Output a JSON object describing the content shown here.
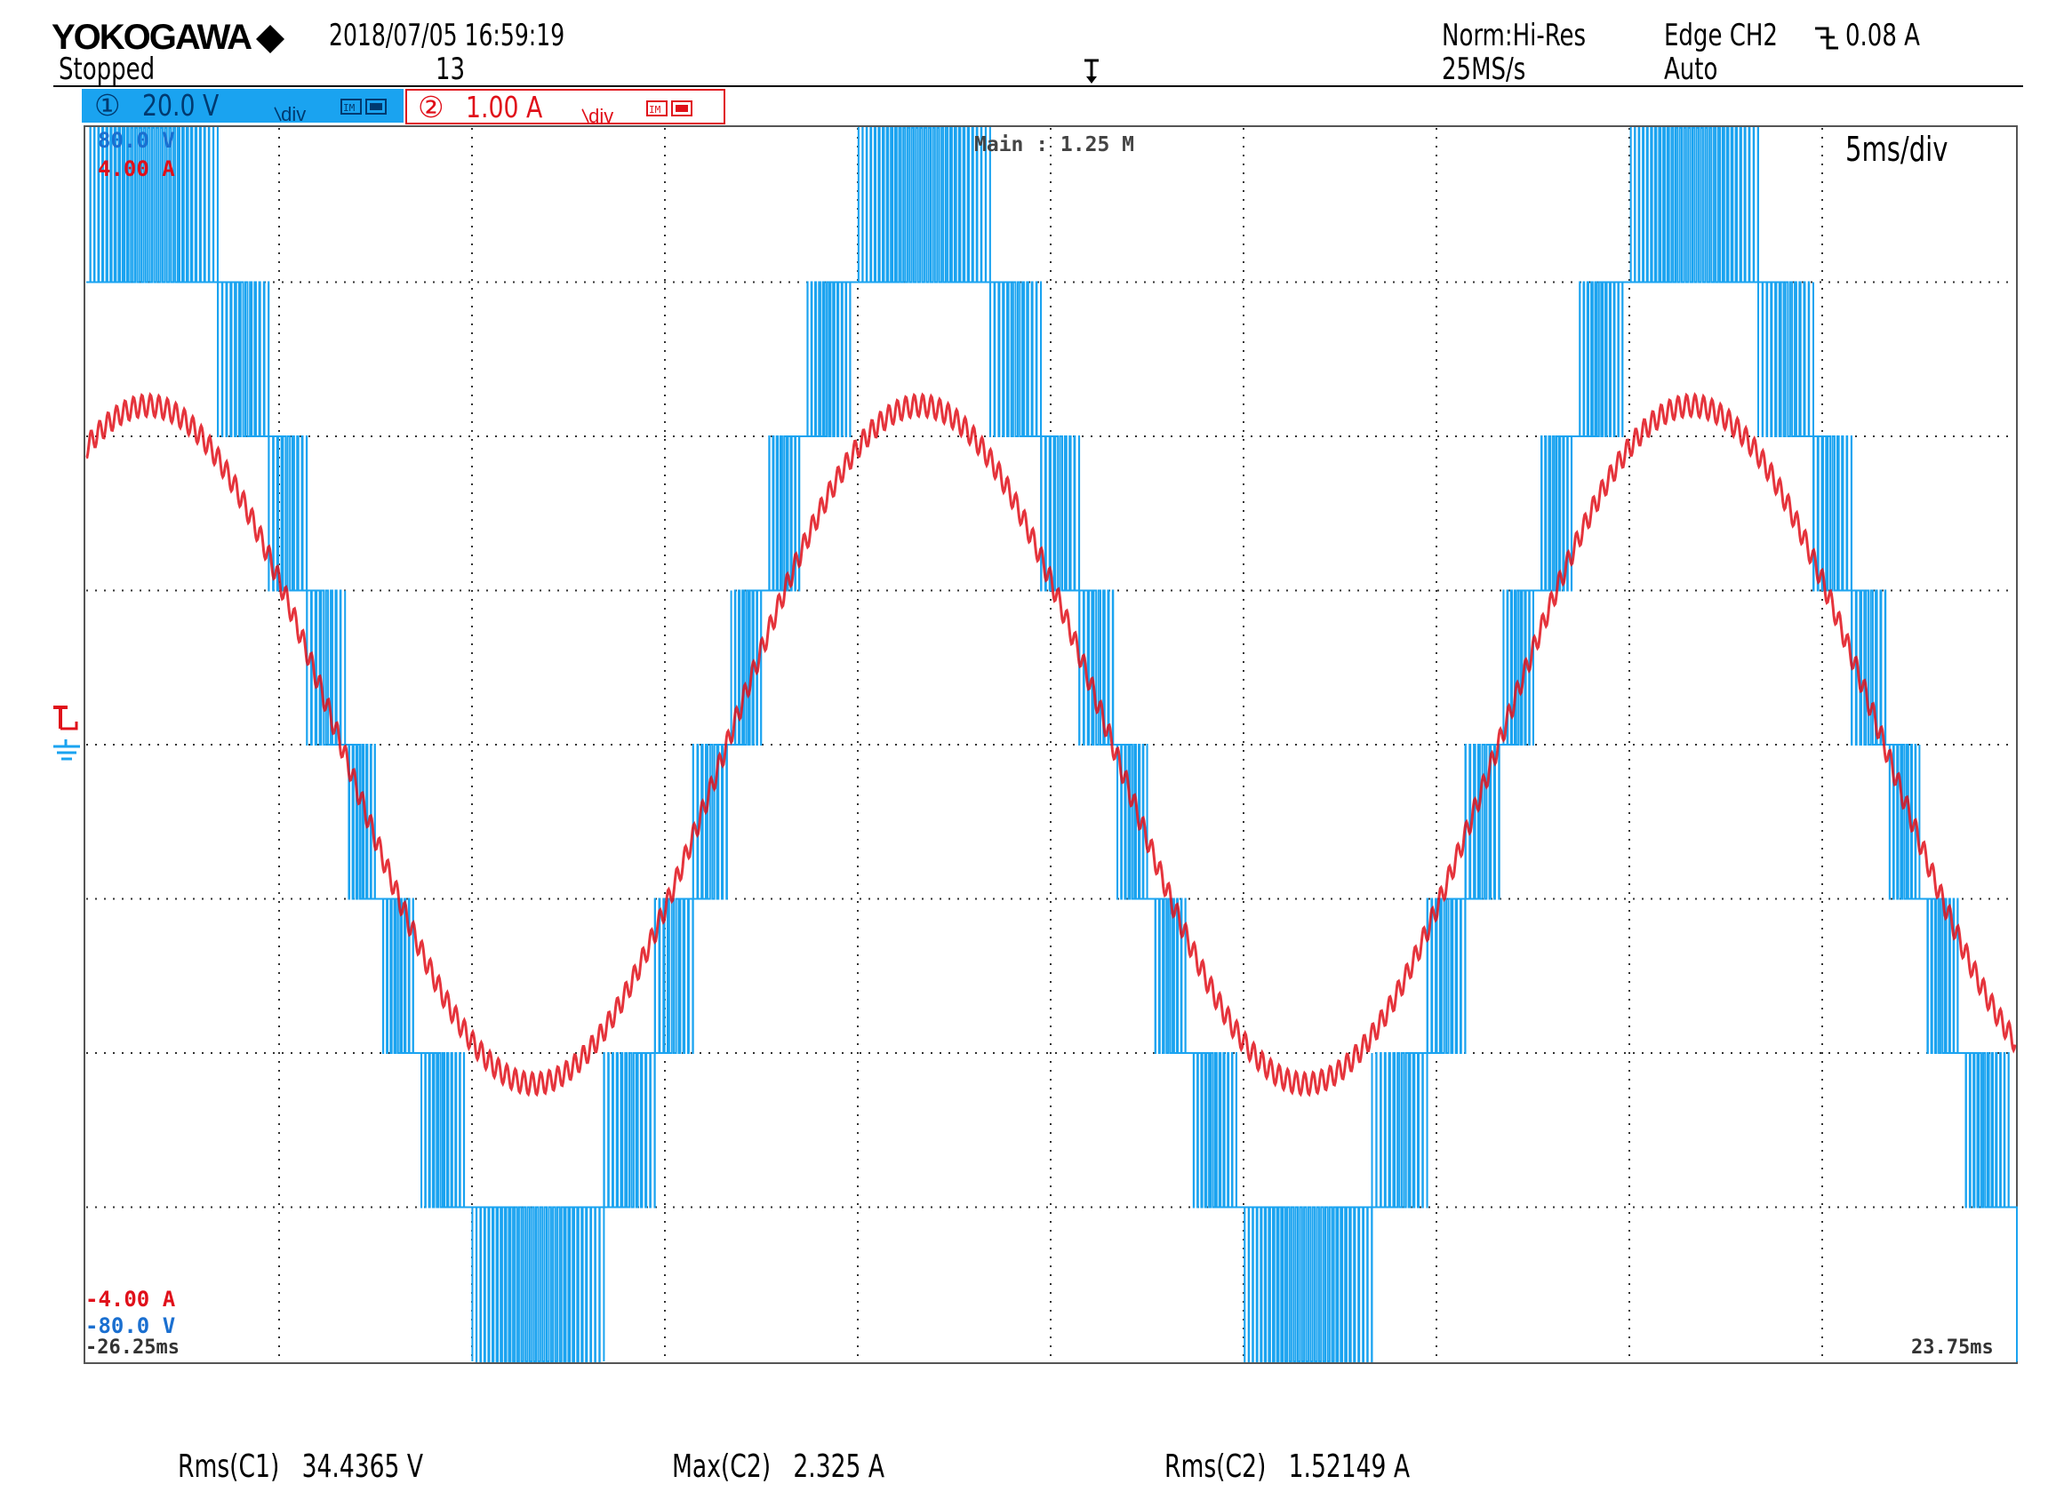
{
  "header": {
    "brand": "YOKOGAWA",
    "brand_mark": "diamond-icon",
    "datetime": "2018/07/05 16:59:19",
    "status": "Stopped",
    "acq_count": "13",
    "acq_mode": "Norm:Hi-Res",
    "sample_rate": "25MS/s",
    "trigger_source": "Edge CH2",
    "trigger_slope_icon": "falling-edge-icon",
    "trigger_level": "0.08 A",
    "trigger_mode": "Auto"
  },
  "channels": {
    "ch1": {
      "number": "①",
      "scale": "20.0 V",
      "unit_suffix": "div",
      "color": "#1aa3f0"
    },
    "ch2": {
      "number": "②",
      "scale": "1.00 A",
      "unit_suffix": "div",
      "color": "#e0101a"
    }
  },
  "plot": {
    "main_label": "Main : 1.25 M",
    "timebase": "5ms/div",
    "ch1_top": "80.0 V",
    "ch2_top": "4.00 A",
    "ch2_bottom": "-4.00 A",
    "ch1_bottom": "-80.0 V",
    "t_left": "-26.25ms",
    "t_right": "23.75ms",
    "trigger_marker": "T",
    "ground_marker": "ground-icon"
  },
  "measurements": [
    {
      "label": "Rms(C1)",
      "value": "34.4365 V"
    },
    {
      "label": "Max(C2)",
      "value": "2.325 A"
    },
    {
      "label": "Rms(C2)",
      "value": "1.52149 A"
    }
  ],
  "chart_data": {
    "type": "line",
    "x_unit": "ms",
    "xlim": [
      -26.25,
      23.75
    ],
    "time_per_div_ms": 5,
    "series": [
      {
        "channel": "CH1",
        "unit": "V",
        "ylim": [
          -80,
          80
        ],
        "volts_per_div": 20,
        "waveform": "multilevel PWM staircase",
        "fundamental_freq_hz": 50,
        "levels_v": [
          -80,
          -60,
          -40,
          -20,
          0,
          20,
          40,
          60,
          80
        ],
        "rms": 34.4365,
        "color": "#1aa3f0"
      },
      {
        "channel": "CH2",
        "unit": "A",
        "ylim": [
          -4,
          4
        ],
        "amps_per_div": 1,
        "waveform": "sinusoid with ripple",
        "fundamental_freq_hz": 50,
        "peak_a": 2.325,
        "rms": 1.52149,
        "color": "#e0101a"
      }
    ],
    "grid": true,
    "grid_divisions": [
      10,
      8
    ]
  }
}
